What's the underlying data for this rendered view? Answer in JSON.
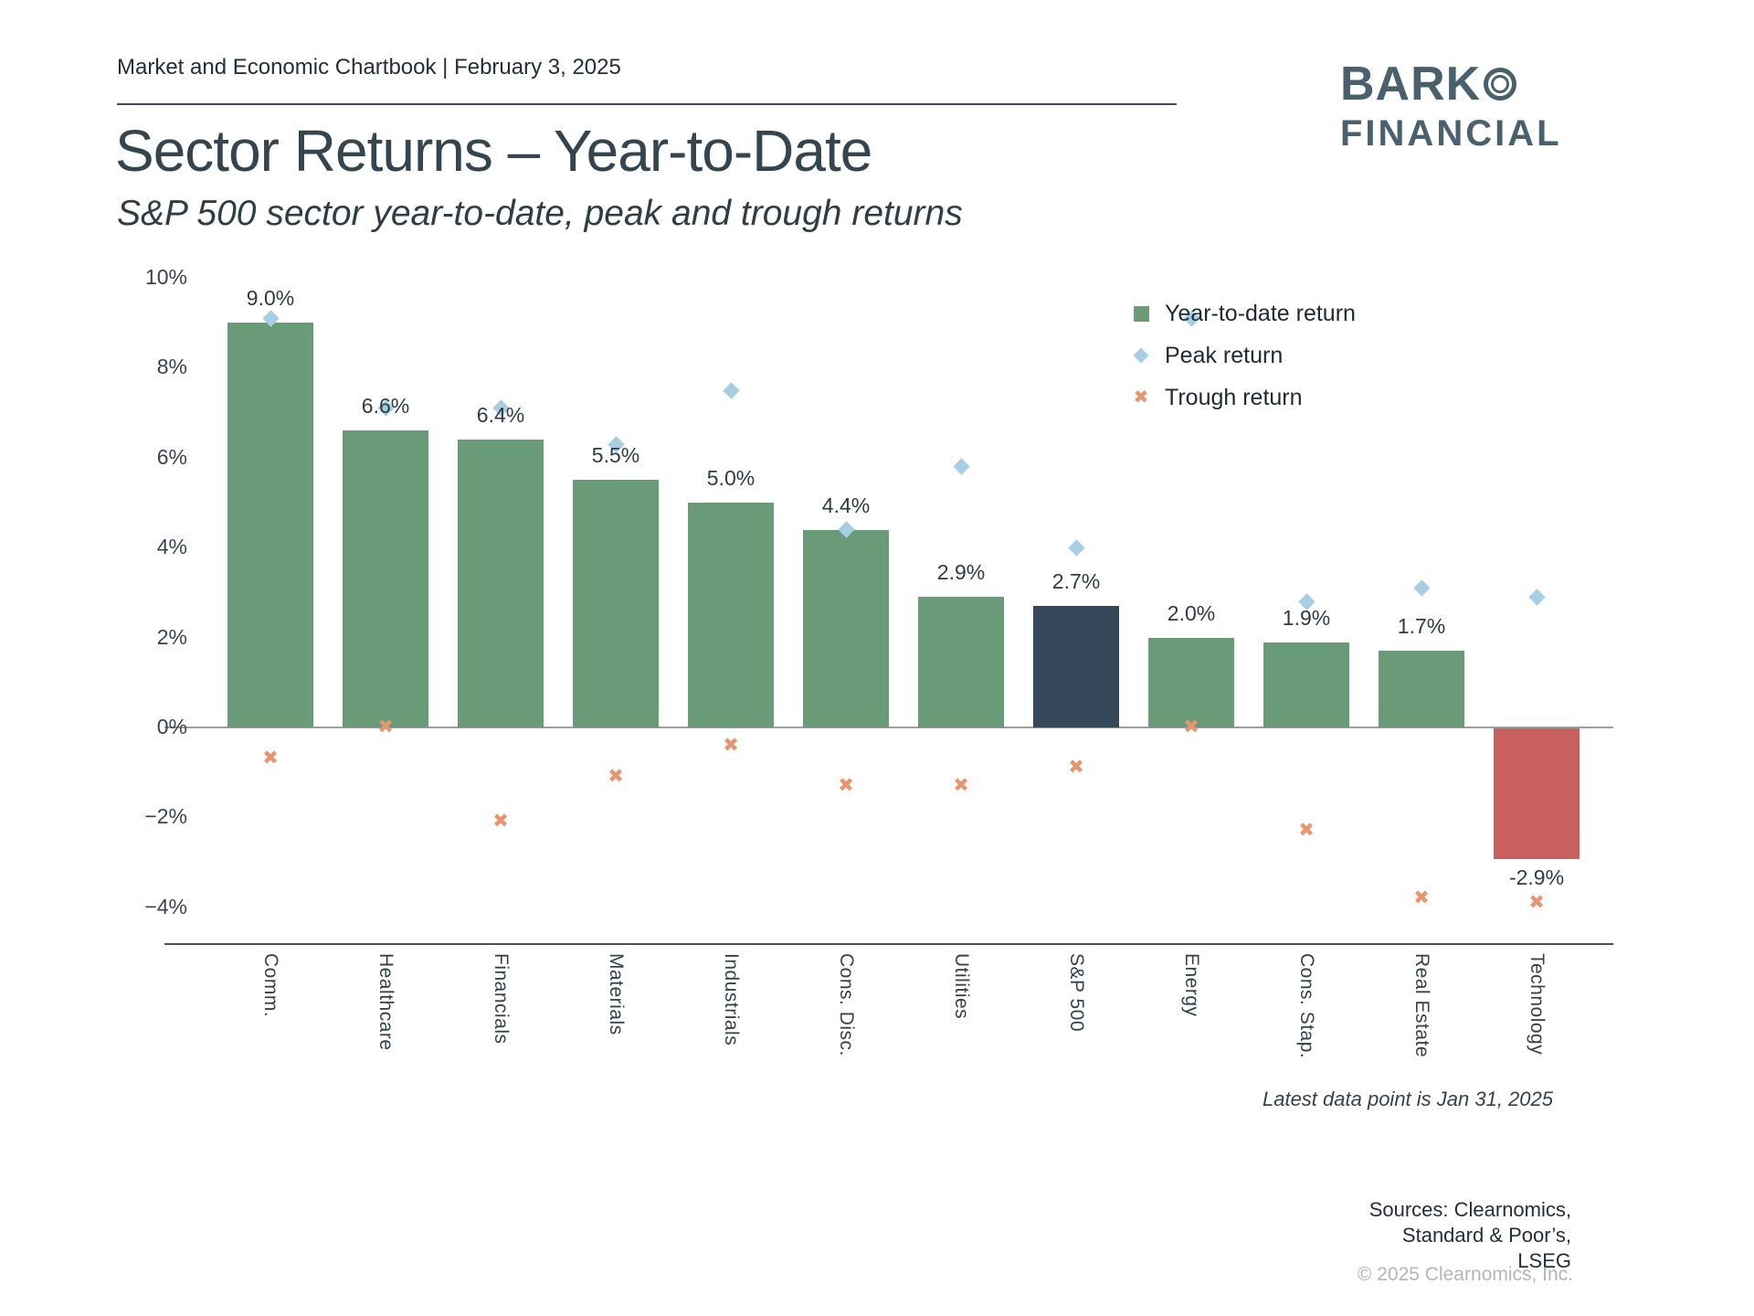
{
  "header": {
    "text": "Market and Economic Chartbook | February 3, 2025"
  },
  "logo": {
    "line1": "BARK",
    "line2": "FINANCIAL",
    "color": "#48616d"
  },
  "title": "Sector Returns – Year-to-Date",
  "subtitle": "S&P 500 sector year-to-date, peak and trough returns",
  "legend": [
    {
      "marker": "square",
      "label": "Year-to-date return"
    },
    {
      "marker": "diamond",
      "label": "Peak return"
    },
    {
      "marker": "cross",
      "label": "Trough return"
    }
  ],
  "footnote": "Latest data point is Jan 31, 2025",
  "sources": [
    "Sources: Clearnomics,",
    "Standard & Poor’s,",
    "LSEG"
  ],
  "copyright": "© 2025 Clearnomics, Inc.",
  "chart_data": {
    "type": "bar",
    "title": "Sector Returns – Year-to-Date",
    "categories": [
      "Comm.",
      "Healthcare",
      "Financials",
      "Materials",
      "Industrials",
      "Cons. Disc.",
      "Utilities",
      "S&P 500",
      "Energy",
      "Cons. Stap.",
      "Real Estate",
      "Technology"
    ],
    "series": [
      {
        "name": "Year-to-date return",
        "values": [
          9.0,
          6.6,
          6.4,
          5.5,
          5.0,
          4.4,
          2.9,
          2.7,
          2.0,
          1.9,
          1.7,
          -2.9
        ]
      },
      {
        "name": "Peak return",
        "values": [
          9.1,
          7.1,
          7.1,
          6.3,
          7.5,
          4.4,
          5.8,
          4.0,
          9.1,
          2.8,
          3.1,
          2.9
        ]
      },
      {
        "name": "Trough return",
        "values": [
          -0.7,
          0.0,
          -2.1,
          -1.1,
          -0.4,
          -1.3,
          -1.3,
          -0.9,
          0.0,
          -2.3,
          -3.8,
          -3.9
        ]
      }
    ],
    "bar_labels": [
      "9.0%",
      "6.6%",
      "6.4%",
      "5.5%",
      "5.0%",
      "4.4%",
      "2.9%",
      "2.7%",
      "2.0%",
      "1.9%",
      "1.7%",
      "-2.9%"
    ],
    "bar_colors": [
      "green",
      "green",
      "green",
      "green",
      "green",
      "green",
      "green",
      "navy",
      "green",
      "green",
      "green",
      "red"
    ],
    "colors": {
      "green": "#6a9b78",
      "navy": "#36495b",
      "red": "#c96060",
      "peak_diamond": "#a8cee4",
      "trough_cross": "#e8946e"
    },
    "ylim": [
      -4,
      10
    ],
    "ytick_values": [
      10,
      8,
      6,
      4,
      2,
      0,
      -2,
      -4
    ],
    "ytick_labels": [
      "10%",
      "8%",
      "6%",
      "4%",
      "2%",
      "0%",
      "−2%",
      "−4%"
    ],
    "grid": false,
    "legend_position": "upper right",
    "xlabel": "",
    "ylabel": ""
  }
}
